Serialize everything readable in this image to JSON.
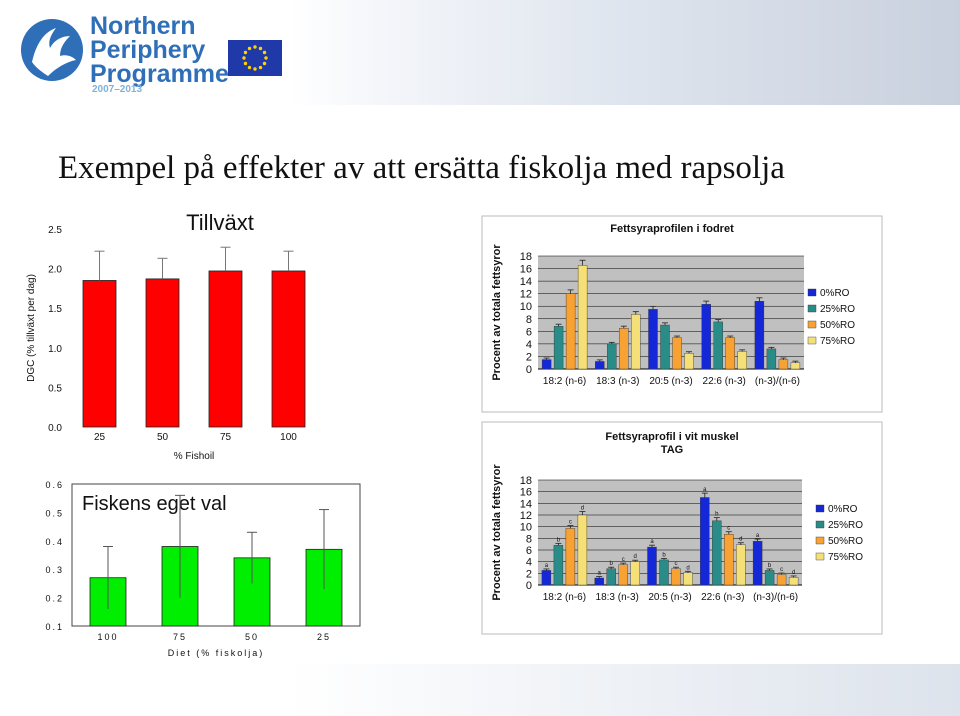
{
  "header": {
    "logo_line1": "Northern",
    "logo_line2": "Periphery",
    "logo_line3": "Programme",
    "logo_years": "2007–2013"
  },
  "slide": {
    "title": "Exempel på effekter av att ersätta fiskolja med rapsolja"
  },
  "colors": {
    "red_bars": "#ff0000",
    "green_bars": "#00ee00",
    "series": [
      "#1428d8",
      "#2a8c88",
      "#f7a232",
      "#f5e078"
    ]
  },
  "chart_data": [
    {
      "type": "bar",
      "title": "Tillväxt",
      "categories": [
        "25",
        "50",
        "75",
        "100"
      ],
      "values": [
        1.85,
        1.87,
        1.97,
        1.97
      ],
      "errors": [
        0.37,
        0.26,
        0.3,
        0.25
      ],
      "ylabel": "DGC (% tillväxt per dag)",
      "xlabel": "% Fishoil",
      "yticks": [
        "0.0",
        "0.5",
        "1.0",
        "1.5",
        "2.0",
        "2.5"
      ],
      "ylim": [
        0,
        2.5
      ],
      "color": "#ff0000"
    },
    {
      "type": "bar",
      "title": "Fiskens eget val",
      "categories": [
        "100",
        "75",
        "50",
        "25"
      ],
      "values": [
        0.27,
        0.38,
        0.34,
        0.37
      ],
      "errors": [
        0.11,
        0.18,
        0.09,
        0.14
      ],
      "xlabel": "Diet (% fiskolja)",
      "yticks": [
        "0.1",
        "0.2",
        "0.3",
        "0.4",
        "0.5",
        "0.6"
      ],
      "ylim": [
        0.1,
        0.6
      ],
      "color": "#00ee00"
    },
    {
      "type": "bar",
      "title": "Fettsyraprofilen i fodret",
      "categories": [
        "18:2 (n-6)",
        "18:3 (n-3)",
        "20:5 (n-3)",
        "22:6 (n-3)",
        "(n-3)/(n-6)"
      ],
      "series": [
        {
          "name": "0%RO",
          "values": [
            1.5,
            1.2,
            9.5,
            10.3,
            10.8
          ]
        },
        {
          "name": "25%RO",
          "values": [
            6.8,
            4.0,
            7.0,
            7.5,
            3.2
          ]
        },
        {
          "name": "50%RO",
          "values": [
            12.0,
            6.5,
            5.0,
            5.0,
            1.5
          ]
        },
        {
          "name": "75%RO",
          "values": [
            16.5,
            8.7,
            2.5,
            2.8,
            1.0
          ]
        }
      ],
      "ylabel": "Procent av totala  fettsyror",
      "yticks": [
        "0",
        "2",
        "4",
        "6",
        "8",
        "10",
        "12",
        "14",
        "16",
        "18"
      ],
      "ylim": [
        0,
        18
      ],
      "legend": "right"
    },
    {
      "type": "bar",
      "title": "Fettsyraprofil i vit muskel",
      "subtitle": "TAG",
      "categories": [
        "18:2 (n-6)",
        "18:3 (n-3)",
        "20:5 (n-3)",
        "22:6 (n-3)",
        "(n-3)/(n-6)"
      ],
      "series": [
        {
          "name": "0%RO",
          "values": [
            2.5,
            1.2,
            6.5,
            15.0,
            7.5
          ]
        },
        {
          "name": "25%RO",
          "values": [
            6.8,
            2.8,
            4.3,
            11.0,
            2.5
          ]
        },
        {
          "name": "50%RO",
          "values": [
            9.7,
            3.5,
            2.8,
            8.7,
            1.8
          ]
        },
        {
          "name": "75%RO",
          "values": [
            12.0,
            4.0,
            2.1,
            6.9,
            1.3
          ]
        }
      ],
      "letters": [
        [
          "a",
          "b",
          "c",
          "d"
        ],
        [
          "a",
          "b",
          "c",
          "d"
        ],
        [
          "a",
          "b",
          "c",
          "d"
        ],
        [
          "a",
          "b",
          "c",
          "d"
        ],
        [
          "a",
          "b",
          "c",
          "d"
        ]
      ],
      "ylabel": "Procent av totala fettsyror",
      "yticks": [
        "0",
        "2",
        "4",
        "6",
        "8",
        "10",
        "12",
        "14",
        "16",
        "18"
      ],
      "ylim": [
        0,
        18
      ],
      "legend": "right"
    }
  ]
}
